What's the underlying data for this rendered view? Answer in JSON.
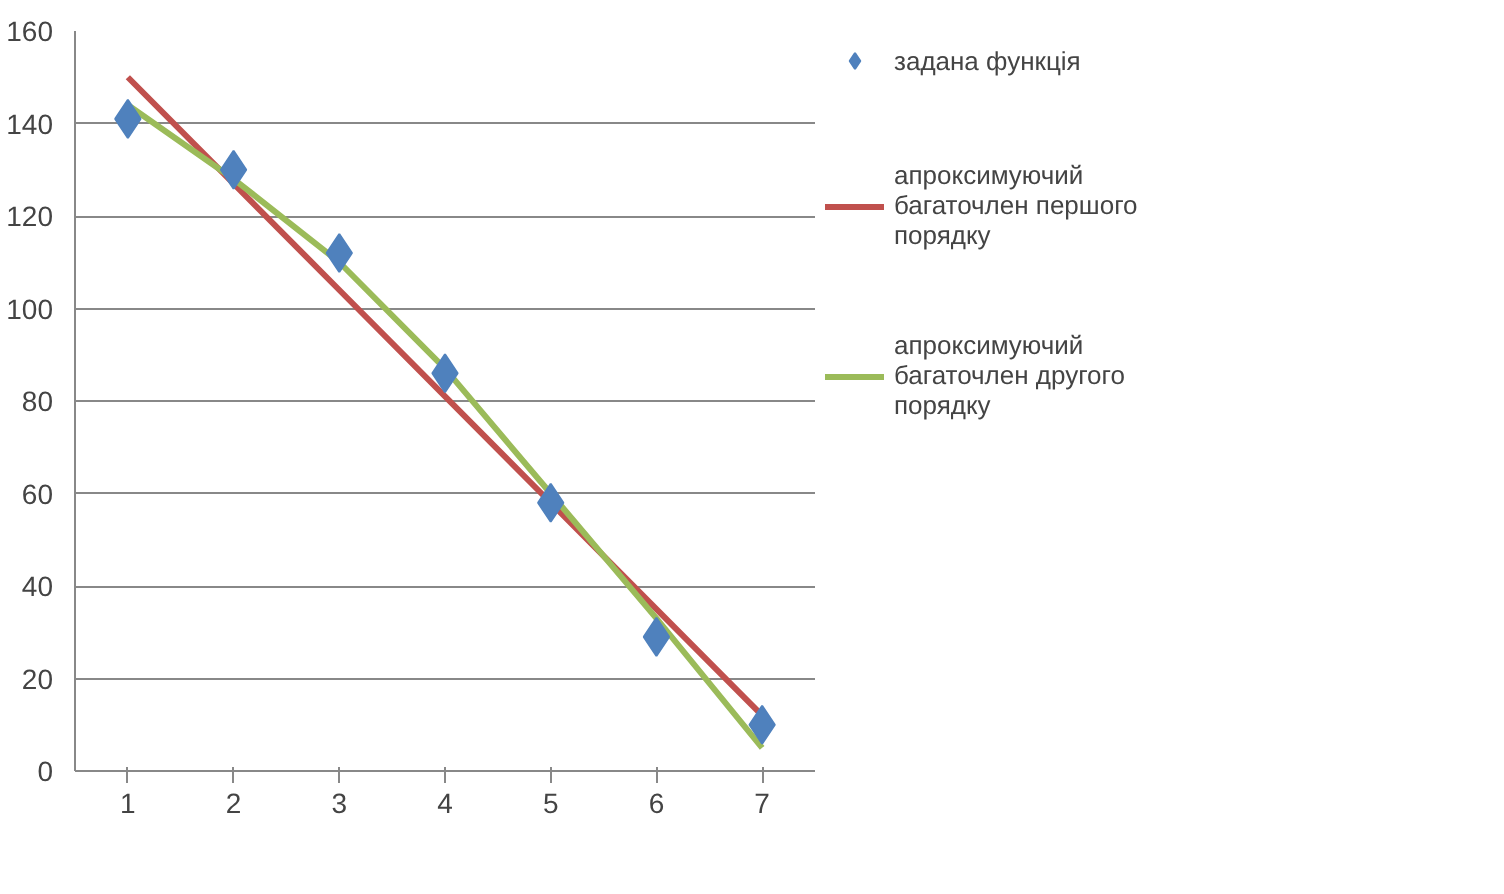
{
  "chart_data": {
    "type": "scatter",
    "categories": [
      "1",
      "2",
      "3",
      "4",
      "5",
      "6",
      "7"
    ],
    "series": [
      {
        "name": "задана функція",
        "color": "#4f81bd",
        "marker": "diamond",
        "values": [
          141,
          130,
          112,
          86,
          58,
          29,
          10
        ]
      },
      {
        "name": "апроксимуючий багаточлен першого порядку",
        "color": "#c0504d",
        "type": "line",
        "marker": "none",
        "values": [
          150,
          127,
          104,
          81,
          58,
          35,
          12
        ]
      },
      {
        "name": "апроксимуючий багаточлен другого порядку",
        "color": "#9bbb59",
        "type": "line",
        "marker": "none",
        "values": [
          144,
          128,
          110,
          87,
          60,
          33,
          5
        ]
      }
    ],
    "ylim": [
      0,
      160
    ],
    "yticks": [
      0,
      20,
      40,
      60,
      80,
      100,
      120,
      140,
      160
    ],
    "grid": "y",
    "legend": "right"
  }
}
